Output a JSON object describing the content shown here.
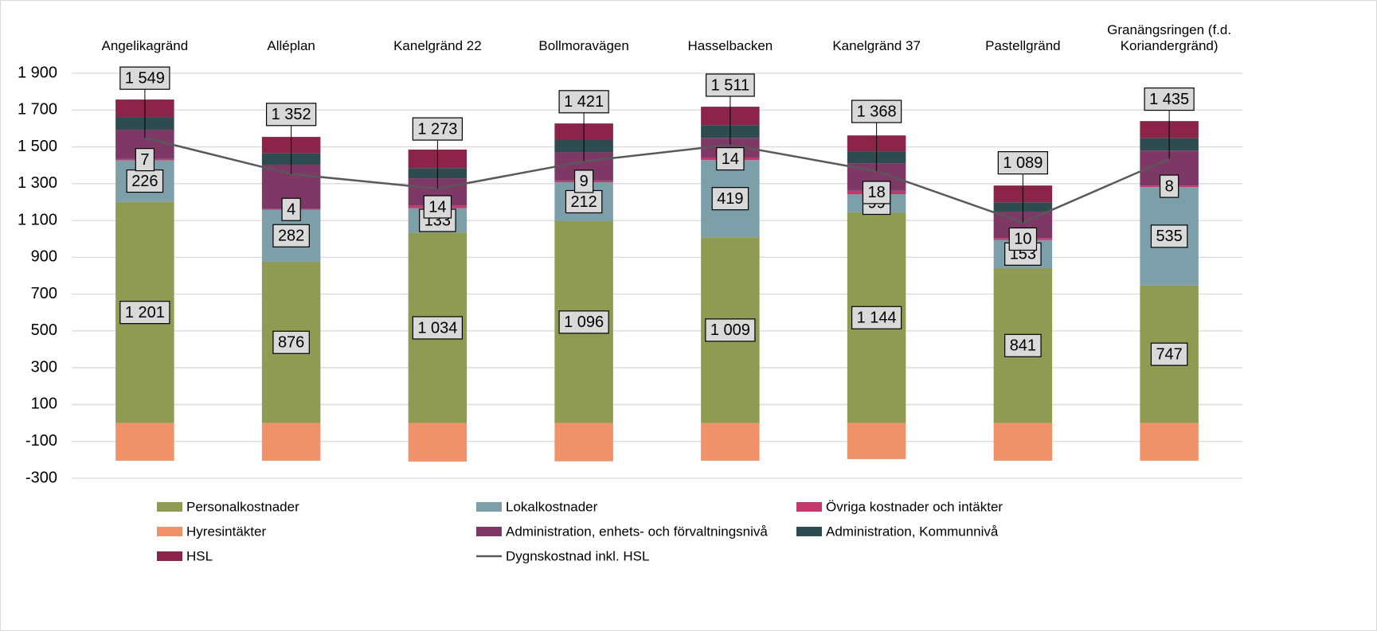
{
  "chart_data": {
    "type": "bar",
    "stacked": true,
    "categories": [
      "Angelikagränd",
      "Alléplan",
      "Kanelgränd 22",
      "Bollmoravägen",
      "Hasselbacken",
      "Kanelgränd 37",
      "Pastellgränd",
      "Granängsringen (f.d. Koriandergränd)"
    ],
    "ylim": [
      -300,
      1900
    ],
    "yticks": [
      {
        "value": 1900,
        "label": "1 900"
      },
      {
        "value": 1700,
        "label": "1 700"
      },
      {
        "value": 1500,
        "label": "1 500"
      },
      {
        "value": 1300,
        "label": "1 300"
      },
      {
        "value": 1100,
        "label": "1 100"
      },
      900,
      700,
      500,
      300,
      100,
      -100,
      -300
    ],
    "grid": true,
    "legend": "bottom",
    "series": [
      {
        "name": "Personalkostnader",
        "color": "#8f9b52",
        "values": [
          1201,
          876,
          1034,
          1096,
          1009,
          1144,
          841,
          747
        ],
        "value_labels": [
          "1 201",
          "876",
          "1 034",
          "1 096",
          "1 009",
          "1 144",
          "841",
          "747"
        ]
      },
      {
        "name": "Lokalkostnader",
        "color": "#7c9fa9",
        "values": [
          226,
          282,
          133,
          212,
          419,
          99,
          153,
          535
        ],
        "show_labels": true
      },
      {
        "name": "Övriga kostnader och intäkter",
        "color": "#c23a6c",
        "values": [
          7,
          4,
          14,
          9,
          14,
          18,
          10,
          8
        ],
        "show_labels": true
      },
      {
        "name": "Hyresintäkter",
        "color": "#f0926a",
        "values": [
          -205,
          -205,
          -210,
          -208,
          -205,
          -196,
          -205,
          -205
        ]
      },
      {
        "name": "Administration, enhets- och förvaltningsnivå",
        "color": "#7d3866",
        "values": [
          159,
          241,
          148,
          155,
          107,
          150,
          144,
          190
        ]
      },
      {
        "name": "Administration, Kommunnivå",
        "color": "#2e4b4f",
        "values": [
          69,
          64,
          56,
          65,
          69,
          65,
          51,
          69
        ]
      },
      {
        "name": "HSL",
        "color": "#8b2448",
        "values": [
          95,
          87,
          100,
          90,
          100,
          86,
          91,
          91
        ]
      },
      {
        "name": "Dygnskostnad inkl. HSL",
        "type": "line",
        "color": "#595959",
        "values": [
          1549,
          1352,
          1273,
          1421,
          1511,
          1368,
          1089,
          1435
        ],
        "value_labels": [
          "1 549",
          "1 352",
          "1 273",
          "1 421",
          "1 511",
          "1 368",
          "1 089",
          "1 435"
        ]
      }
    ]
  }
}
